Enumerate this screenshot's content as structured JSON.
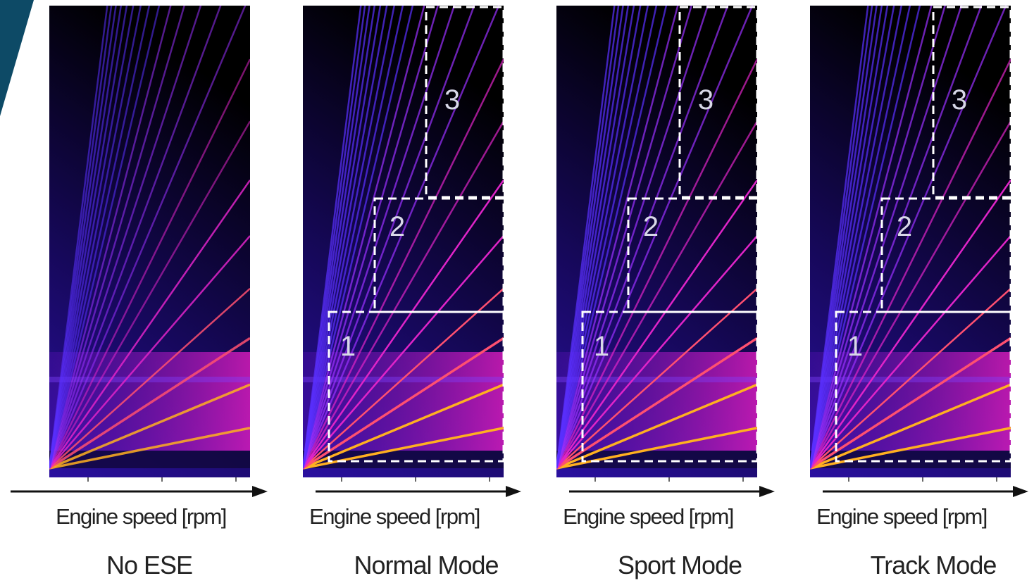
{
  "panels": [
    {
      "axis_label": "Engine speed [rpm]",
      "caption": "No ESE"
    },
    {
      "axis_label": "Engine speed [rpm]",
      "caption": "Normal Mode",
      "zones": [
        "1",
        "2",
        "3"
      ]
    },
    {
      "axis_label": "Engine speed [rpm]",
      "caption": "Sport Mode",
      "zones": [
        "1",
        "2",
        "3"
      ]
    },
    {
      "axis_label": "Engine speed [rpm]",
      "caption": "Track Mode",
      "zones": [
        "1",
        "2",
        "3"
      ]
    }
  ]
}
